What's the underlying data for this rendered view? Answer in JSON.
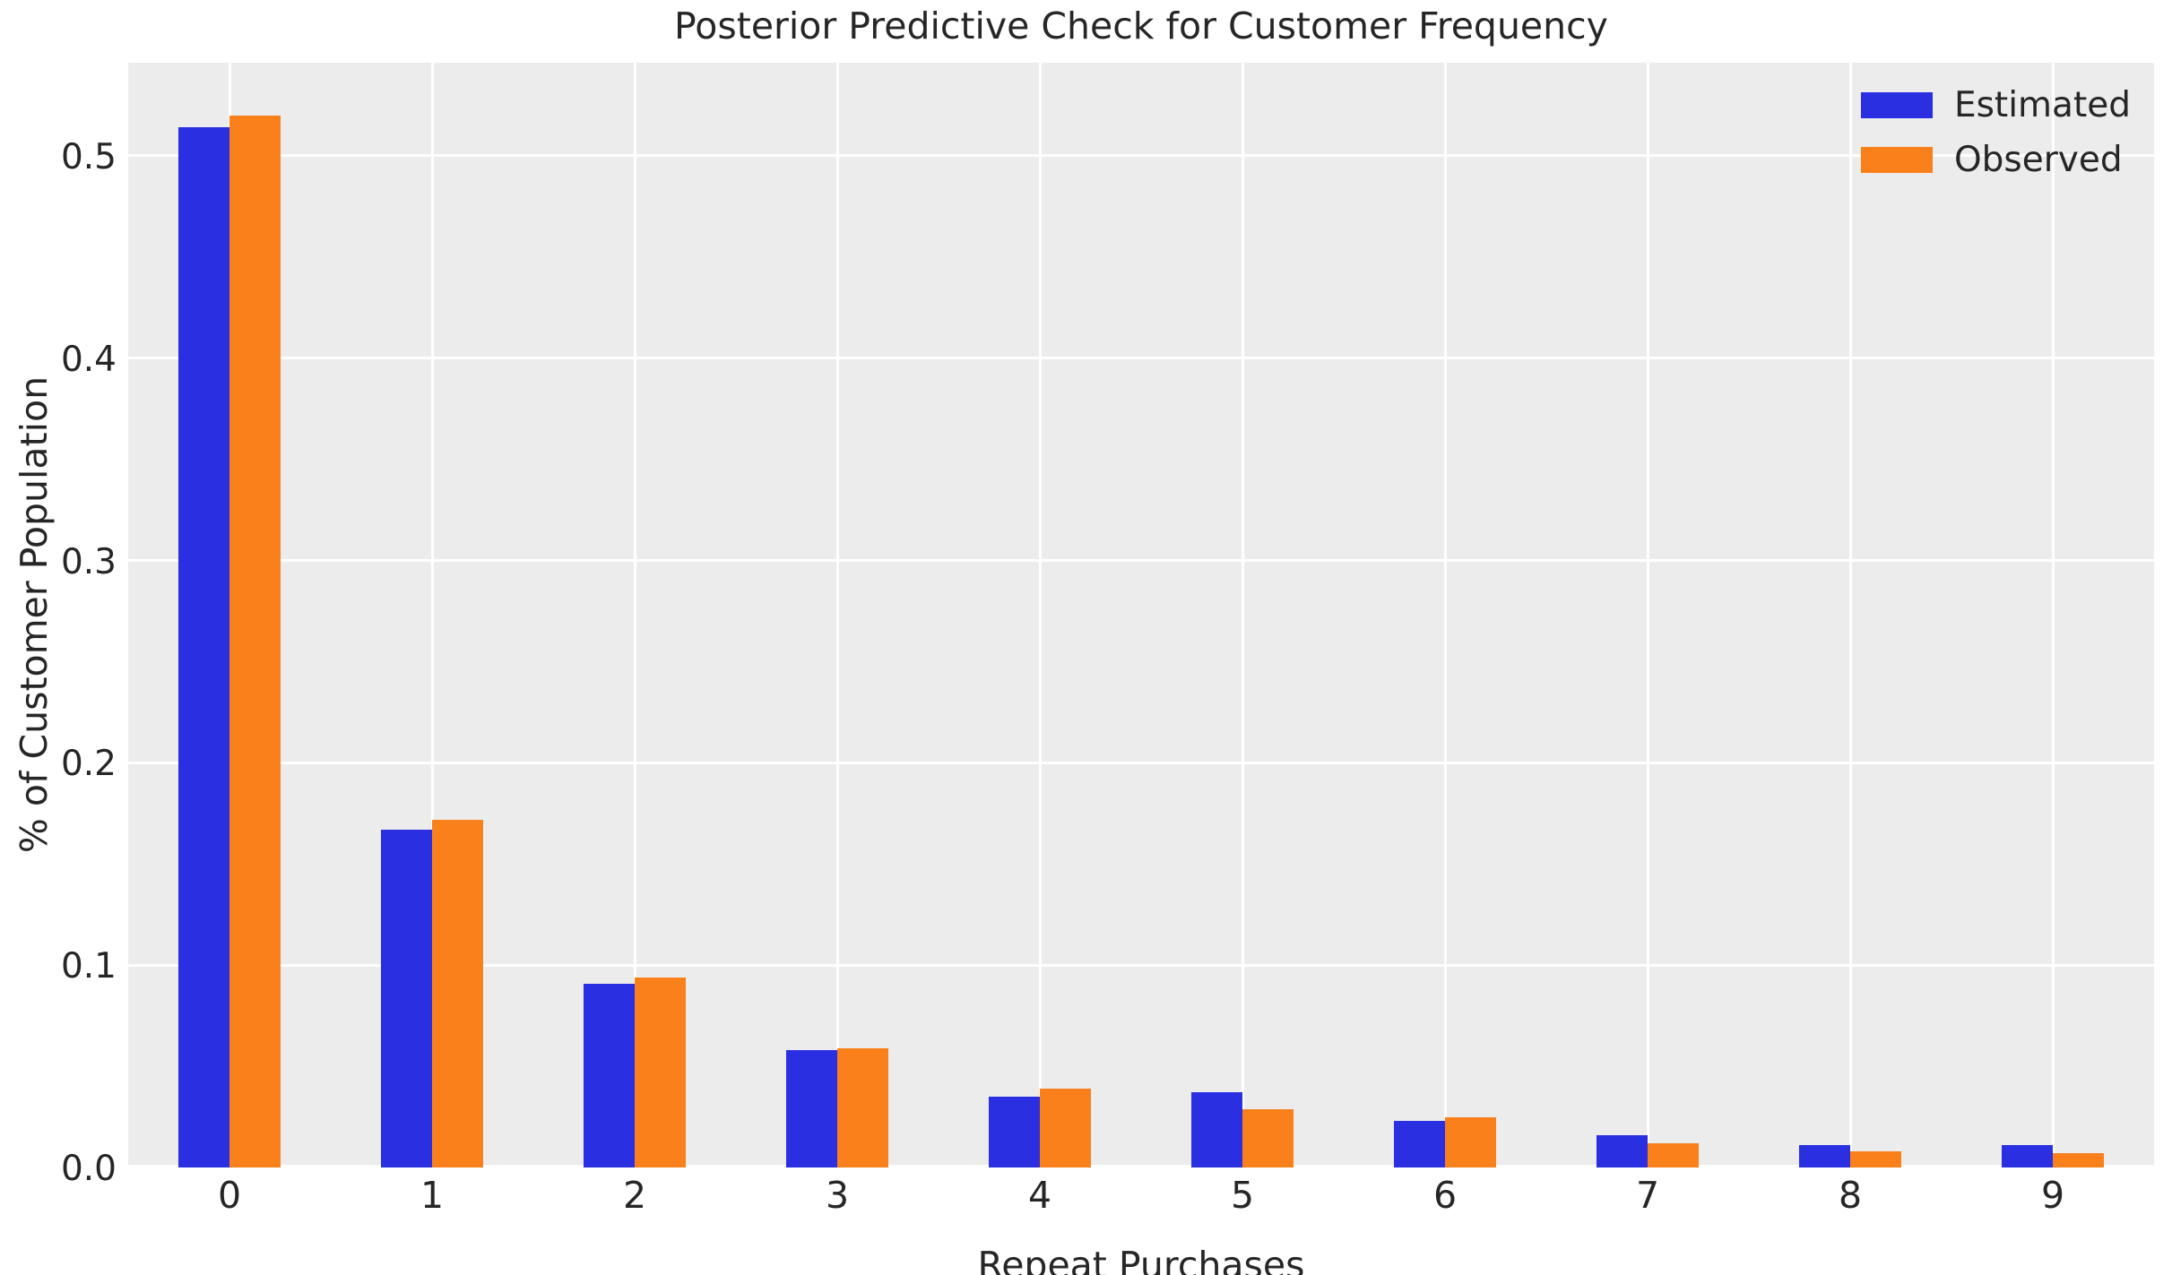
{
  "chart_data": {
    "type": "bar",
    "title": "Posterior Predictive Check for Customer Frequency",
    "xlabel": "Repeat Purchases",
    "ylabel": "% of Customer Population",
    "categories": [
      "0",
      "1",
      "2",
      "3",
      "4",
      "5",
      "6",
      "7",
      "8",
      "9"
    ],
    "series": [
      {
        "name": "Estimated",
        "color": "#2a2fe2",
        "values": [
          0.514,
          0.167,
          0.091,
          0.058,
          0.035,
          0.037,
          0.023,
          0.016,
          0.011,
          0.011
        ]
      },
      {
        "name": "Observed",
        "color": "#f9801b",
        "values": [
          0.52,
          0.172,
          0.094,
          0.059,
          0.039,
          0.029,
          0.025,
          0.012,
          0.008,
          0.007
        ]
      }
    ],
    "ylim": [
      0,
      0.546
    ],
    "yticks": [
      0.0,
      0.1,
      0.2,
      0.3,
      0.4,
      0.5
    ],
    "ytick_labels": [
      "0.0",
      "0.1",
      "0.2",
      "0.3",
      "0.4",
      "0.5"
    ],
    "grid": true,
    "legend_position": "upper right",
    "plot_background_color": "#ececec",
    "grid_color": "#ffffff",
    "text_color": "#262626"
  }
}
